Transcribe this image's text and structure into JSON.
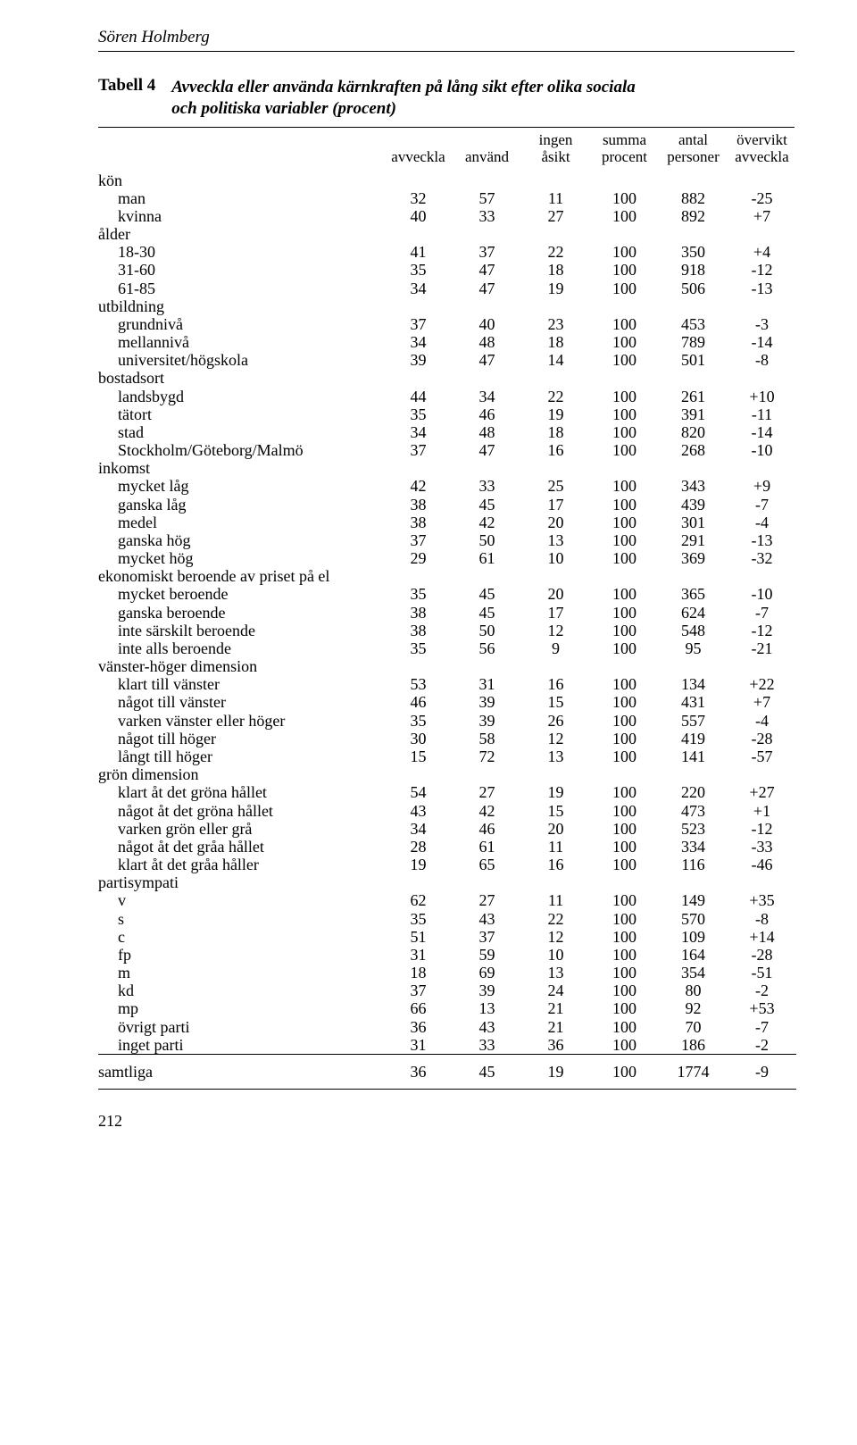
{
  "author": "Sören Holmberg",
  "table_label": "Tabell 4",
  "table_title_l1": "Avveckla eller använda kärnkraften på lång sikt efter olika sociala",
  "table_title_l2": "och politiska variabler (procent)",
  "headers": {
    "c1": "avveckla",
    "c2": "använd",
    "c3a": "ingen",
    "c3b": "åsikt",
    "c4a": "summa",
    "c4b": "procent",
    "c5a": "antal",
    "c5b": "personer",
    "c6a": "övervikt",
    "c6b": "avveckla"
  },
  "groups": [
    {
      "label": "kön",
      "rows": [
        {
          "l": "man",
          "v": [
            "32",
            "57",
            "11",
            "100",
            "882",
            "-25"
          ]
        },
        {
          "l": "kvinna",
          "v": [
            "40",
            "33",
            "27",
            "100",
            "892",
            "+7"
          ]
        }
      ]
    },
    {
      "label": "ålder",
      "rows": [
        {
          "l": "18-30",
          "v": [
            "41",
            "37",
            "22",
            "100",
            "350",
            "+4"
          ]
        },
        {
          "l": "31-60",
          "v": [
            "35",
            "47",
            "18",
            "100",
            "918",
            "-12"
          ]
        },
        {
          "l": "61-85",
          "v": [
            "34",
            "47",
            "19",
            "100",
            "506",
            "-13"
          ]
        }
      ]
    },
    {
      "label": "utbildning",
      "rows": [
        {
          "l": "grundnivå",
          "v": [
            "37",
            "40",
            "23",
            "100",
            "453",
            "-3"
          ]
        },
        {
          "l": "mellannivå",
          "v": [
            "34",
            "48",
            "18",
            "100",
            "789",
            "-14"
          ]
        },
        {
          "l": "universitet/högskola",
          "v": [
            "39",
            "47",
            "14",
            "100",
            "501",
            "-8"
          ]
        }
      ]
    },
    {
      "label": "bostadsort",
      "rows": [
        {
          "l": "landsbygd",
          "v": [
            "44",
            "34",
            "22",
            "100",
            "261",
            "+10"
          ]
        },
        {
          "l": "tätort",
          "v": [
            "35",
            "46",
            "19",
            "100",
            "391",
            "-11"
          ]
        },
        {
          "l": "stad",
          "v": [
            "34",
            "48",
            "18",
            "100",
            "820",
            "-14"
          ]
        },
        {
          "l": "Stockholm/Göteborg/Malmö",
          "v": [
            "37",
            "47",
            "16",
            "100",
            "268",
            "-10"
          ]
        }
      ]
    },
    {
      "label": "inkomst",
      "rows": [
        {
          "l": "mycket låg",
          "v": [
            "42",
            "33",
            "25",
            "100",
            "343",
            "+9"
          ]
        },
        {
          "l": "ganska låg",
          "v": [
            "38",
            "45",
            "17",
            "100",
            "439",
            "-7"
          ]
        },
        {
          "l": "medel",
          "v": [
            "38",
            "42",
            "20",
            "100",
            "301",
            "-4"
          ]
        },
        {
          "l": "ganska hög",
          "v": [
            "37",
            "50",
            "13",
            "100",
            "291",
            "-13"
          ]
        },
        {
          "l": "mycket hög",
          "v": [
            "29",
            "61",
            "10",
            "100",
            "369",
            "-32"
          ]
        }
      ]
    },
    {
      "label": "ekonomiskt beroende av priset på el",
      "rows": [
        {
          "l": "mycket beroende",
          "v": [
            "35",
            "45",
            "20",
            "100",
            "365",
            "-10"
          ]
        },
        {
          "l": "ganska beroende",
          "v": [
            "38",
            "45",
            "17",
            "100",
            "624",
            "-7"
          ]
        },
        {
          "l": "inte särskilt beroende",
          "v": [
            "38",
            "50",
            "12",
            "100",
            "548",
            "-12"
          ]
        },
        {
          "l": "inte alls beroende",
          "v": [
            "35",
            "56",
            "9",
            "100",
            "95",
            "-21"
          ]
        }
      ]
    },
    {
      "label": "vänster-höger dimension",
      "rows": [
        {
          "l": "klart till vänster",
          "v": [
            "53",
            "31",
            "16",
            "100",
            "134",
            "+22"
          ]
        },
        {
          "l": "något till vänster",
          "v": [
            "46",
            "39",
            "15",
            "100",
            "431",
            "+7"
          ]
        },
        {
          "l": "varken vänster eller höger",
          "v": [
            "35",
            "39",
            "26",
            "100",
            "557",
            "-4"
          ]
        },
        {
          "l": "något till höger",
          "v": [
            "30",
            "58",
            "12",
            "100",
            "419",
            "-28"
          ]
        },
        {
          "l": "långt till höger",
          "v": [
            "15",
            "72",
            "13",
            "100",
            "141",
            "-57"
          ]
        }
      ]
    },
    {
      "label": "grön dimension",
      "rows": [
        {
          "l": "klart åt det gröna hållet",
          "v": [
            "54",
            "27",
            "19",
            "100",
            "220",
            "+27"
          ]
        },
        {
          "l": "något åt det gröna hållet",
          "v": [
            "43",
            "42",
            "15",
            "100",
            "473",
            "+1"
          ]
        },
        {
          "l": "varken grön eller grå",
          "v": [
            "34",
            "46",
            "20",
            "100",
            "523",
            "-12"
          ]
        },
        {
          "l": "något åt det gråa hållet",
          "v": [
            "28",
            "61",
            "11",
            "100",
            "334",
            "-33"
          ]
        },
        {
          "l": "klart åt det gråa håller",
          "v": [
            "19",
            "65",
            "16",
            "100",
            "116",
            "-46"
          ]
        }
      ]
    },
    {
      "label": "partisympati",
      "rows": [
        {
          "l": "v",
          "v": [
            "62",
            "27",
            "11",
            "100",
            "149",
            "+35"
          ]
        },
        {
          "l": "s",
          "v": [
            "35",
            "43",
            "22",
            "100",
            "570",
            "-8"
          ]
        },
        {
          "l": "c",
          "v": [
            "51",
            "37",
            "12",
            "100",
            "109",
            "+14"
          ]
        },
        {
          "l": "fp",
          "v": [
            "31",
            "59",
            "10",
            "100",
            "164",
            "-28"
          ]
        },
        {
          "l": "m",
          "v": [
            "18",
            "69",
            "13",
            "100",
            "354",
            "-51"
          ]
        },
        {
          "l": "kd",
          "v": [
            "37",
            "39",
            "24",
            "100",
            "80",
            "-2"
          ]
        },
        {
          "l": "mp",
          "v": [
            "66",
            "13",
            "21",
            "100",
            "92",
            "+53"
          ]
        },
        {
          "l": "övrigt parti",
          "v": [
            "36",
            "43",
            "21",
            "100",
            "70",
            "-7"
          ]
        },
        {
          "l": "inget parti",
          "v": [
            "31",
            "33",
            "36",
            "100",
            "186",
            "-2"
          ]
        }
      ]
    }
  ],
  "total": {
    "l": "samtliga",
    "v": [
      "36",
      "45",
      "19",
      "100",
      "1774",
      "-9"
    ]
  },
  "page_number": "212"
}
